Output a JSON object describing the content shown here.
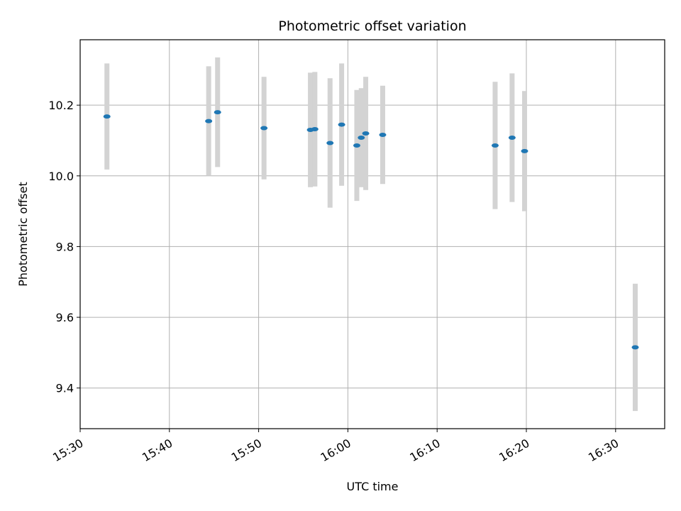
{
  "chart_data": {
    "type": "scatter",
    "title": "Photometric offset variation",
    "xlabel": "UTC time",
    "ylabel": "Photometric offset",
    "grid": true,
    "x_tick_labels": [
      "15:30",
      "15:40",
      "15:50",
      "16:00",
      "16:10",
      "16:20",
      "16:30"
    ],
    "y_ticks": [
      9.4,
      9.6,
      9.8,
      10.0,
      10.2
    ],
    "y_tick_labels": [
      "9.4",
      "9.6",
      "9.8",
      "10.0",
      "10.2"
    ],
    "xlim": [
      "15:30",
      "16:35.5"
    ],
    "ylim": [
      9.285,
      10.385
    ],
    "marker_color": "#1f77b4",
    "errorbar_color": "#d3d3d3",
    "points": [
      {
        "t": "15:33.0",
        "y": 10.168,
        "err": 0.15
      },
      {
        "t": "15:44.4",
        "y": 10.155,
        "err": 0.155
      },
      {
        "t": "15:45.4",
        "y": 10.18,
        "err": 0.155
      },
      {
        "t": "15:50.6",
        "y": 10.135,
        "err": 0.145
      },
      {
        "t": "15:55.8",
        "y": 10.13,
        "err": 0.162
      },
      {
        "t": "15:56.3",
        "y": 10.132,
        "err": 0.162
      },
      {
        "t": "15:58.0",
        "y": 10.093,
        "err": 0.183
      },
      {
        "t": "15:59.3",
        "y": 10.145,
        "err": 0.173
      },
      {
        "t": "16:01.0",
        "y": 10.086,
        "err": 0.157
      },
      {
        "t": "16:01.5",
        "y": 10.108,
        "err": 0.14
      },
      {
        "t": "16:02.0",
        "y": 10.12,
        "err": 0.16
      },
      {
        "t": "16:03.9",
        "y": 10.116,
        "err": 0.139
      },
      {
        "t": "16:16.5",
        "y": 10.086,
        "err": 0.18
      },
      {
        "t": "16:18.4",
        "y": 10.108,
        "err": 0.182
      },
      {
        "t": "16:19.8",
        "y": 10.07,
        "err": 0.17
      },
      {
        "t": "16:32.2",
        "y": 9.515,
        "err": 0.18
      }
    ]
  }
}
